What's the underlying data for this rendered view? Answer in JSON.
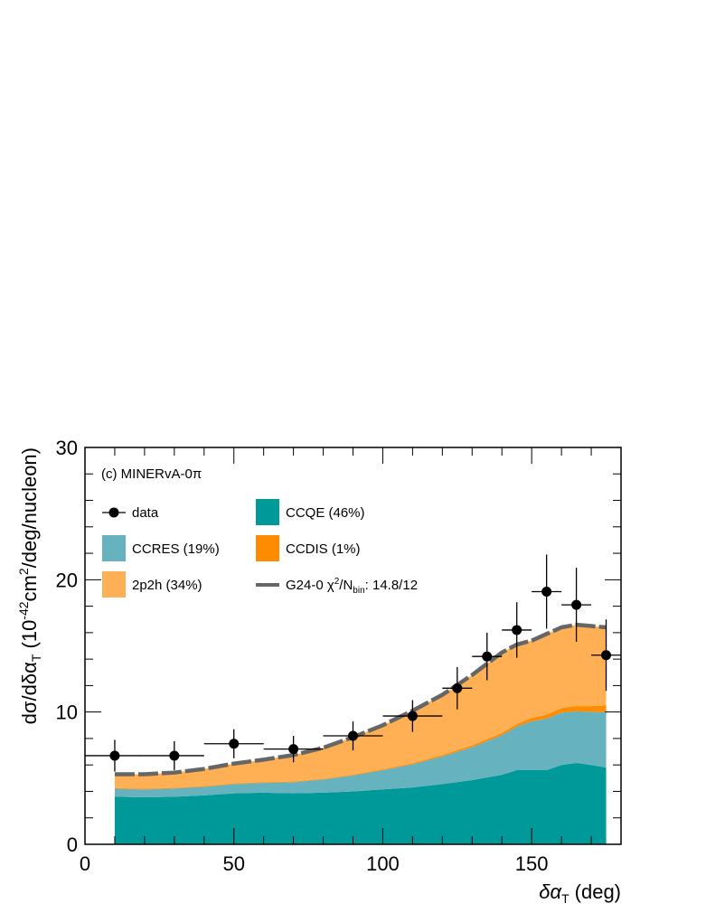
{
  "chart_data": {
    "type": "area",
    "panel_label": "(c) MINERvA-0π",
    "xlabel_symbol": "δα",
    "xlabel_sub": "T",
    "xlabel_unit": "(deg)",
    "ylabel_prefix": "dσ/dδα",
    "ylabel_sub": "T",
    "ylabel_mid": " (10",
    "ylabel_exp1": "-42",
    "ylabel_cm": "cm",
    "ylabel_exp2": "2",
    "ylabel_tail": "/deg/nucleon)",
    "xlim": [
      0,
      180
    ],
    "ylim": [
      0,
      30
    ],
    "x_ticks": [
      0,
      50,
      100,
      150
    ],
    "y_ticks": [
      0,
      10,
      20,
      30
    ],
    "x_tick_labels": [
      "0",
      "50",
      "100",
      "150"
    ],
    "y_tick_labels": [
      "0",
      "10",
      "20",
      "30"
    ],
    "x": [
      10,
      20,
      30,
      40,
      50,
      60,
      70,
      80,
      90,
      100,
      110,
      120,
      130,
      140,
      145,
      150,
      155,
      160,
      165,
      170,
      175
    ],
    "stack": [
      {
        "name": "CCQE",
        "legend": "CCQE (46%)",
        "color": "#009999",
        "values": [
          3.6,
          3.55,
          3.6,
          3.7,
          3.85,
          3.9,
          3.85,
          3.9,
          4.0,
          4.15,
          4.3,
          4.55,
          4.85,
          5.25,
          5.6,
          5.6,
          5.6,
          6.0,
          6.15,
          6.0,
          5.8
        ]
      },
      {
        "name": "CCRES",
        "legend": "CCRES (19%)",
        "color": "#66b2bf",
        "values": [
          0.6,
          0.6,
          0.62,
          0.65,
          0.7,
          0.75,
          0.85,
          1.0,
          1.2,
          1.45,
          1.75,
          2.1,
          2.5,
          3.0,
          3.3,
          3.7,
          3.9,
          3.95,
          3.9,
          4.0,
          4.2
        ]
      },
      {
        "name": "CCDIS",
        "legend": "CCDIS (1%)",
        "color": "#ff8c00",
        "values": [
          0.05,
          0.05,
          0.05,
          0.05,
          0.05,
          0.05,
          0.05,
          0.05,
          0.06,
          0.07,
          0.08,
          0.1,
          0.13,
          0.17,
          0.2,
          0.25,
          0.3,
          0.35,
          0.4,
          0.45,
          0.5
        ]
      },
      {
        "name": "2p2h",
        "legend": "2p2h (34%)",
        "color": "#ffb054",
        "values": [
          1.05,
          1.1,
          1.15,
          1.3,
          1.5,
          1.7,
          2.0,
          2.35,
          2.84,
          3.33,
          3.97,
          4.55,
          5.32,
          6.08,
          6.0,
          5.85,
          6.1,
          6.1,
          6.15,
          6.05,
          5.9
        ]
      }
    ],
    "total": {
      "name": "G24-0",
      "legend_prefix": "G24-0 χ",
      "legend_exp": "2",
      "legend_mid": "/N",
      "legend_sub": "bin",
      "legend_tail": ": 14.8/12",
      "color": "#666666",
      "values": [
        5.3,
        5.3,
        5.42,
        5.7,
        6.1,
        6.4,
        6.75,
        7.3,
        8.1,
        9.0,
        10.1,
        11.3,
        12.8,
        14.5,
        15.1,
        15.4,
        15.9,
        16.4,
        16.6,
        16.5,
        16.4
      ]
    },
    "data": {
      "name": "data",
      "legend": "data",
      "points": [
        {
          "x": 10,
          "xerr": 10,
          "y": 6.7,
          "yerr": 1.2
        },
        {
          "x": 30,
          "xerr": 10,
          "y": 6.7,
          "yerr": 1.1
        },
        {
          "x": 50,
          "xerr": 10,
          "y": 7.6,
          "yerr": 1.1
        },
        {
          "x": 70,
          "xerr": 10,
          "y": 7.2,
          "yerr": 1.0
        },
        {
          "x": 90,
          "xerr": 10,
          "y": 8.2,
          "yerr": 1.1
        },
        {
          "x": 110,
          "xerr": 10,
          "y": 9.7,
          "yerr": 1.2
        },
        {
          "x": 125,
          "xerr": 5,
          "y": 11.8,
          "yerr": 1.6
        },
        {
          "x": 135,
          "xerr": 5,
          "y": 14.2,
          "yerr": 1.8
        },
        {
          "x": 145,
          "xerr": 5,
          "y": 16.2,
          "yerr": 2.1
        },
        {
          "x": 155,
          "xerr": 5,
          "y": 19.1,
          "yerr": 2.8
        },
        {
          "x": 165,
          "xerr": 5,
          "y": 18.1,
          "yerr": 2.8
        },
        {
          "x": 175,
          "xerr": 5,
          "y": 14.3,
          "yerr": 2.7
        }
      ]
    }
  }
}
